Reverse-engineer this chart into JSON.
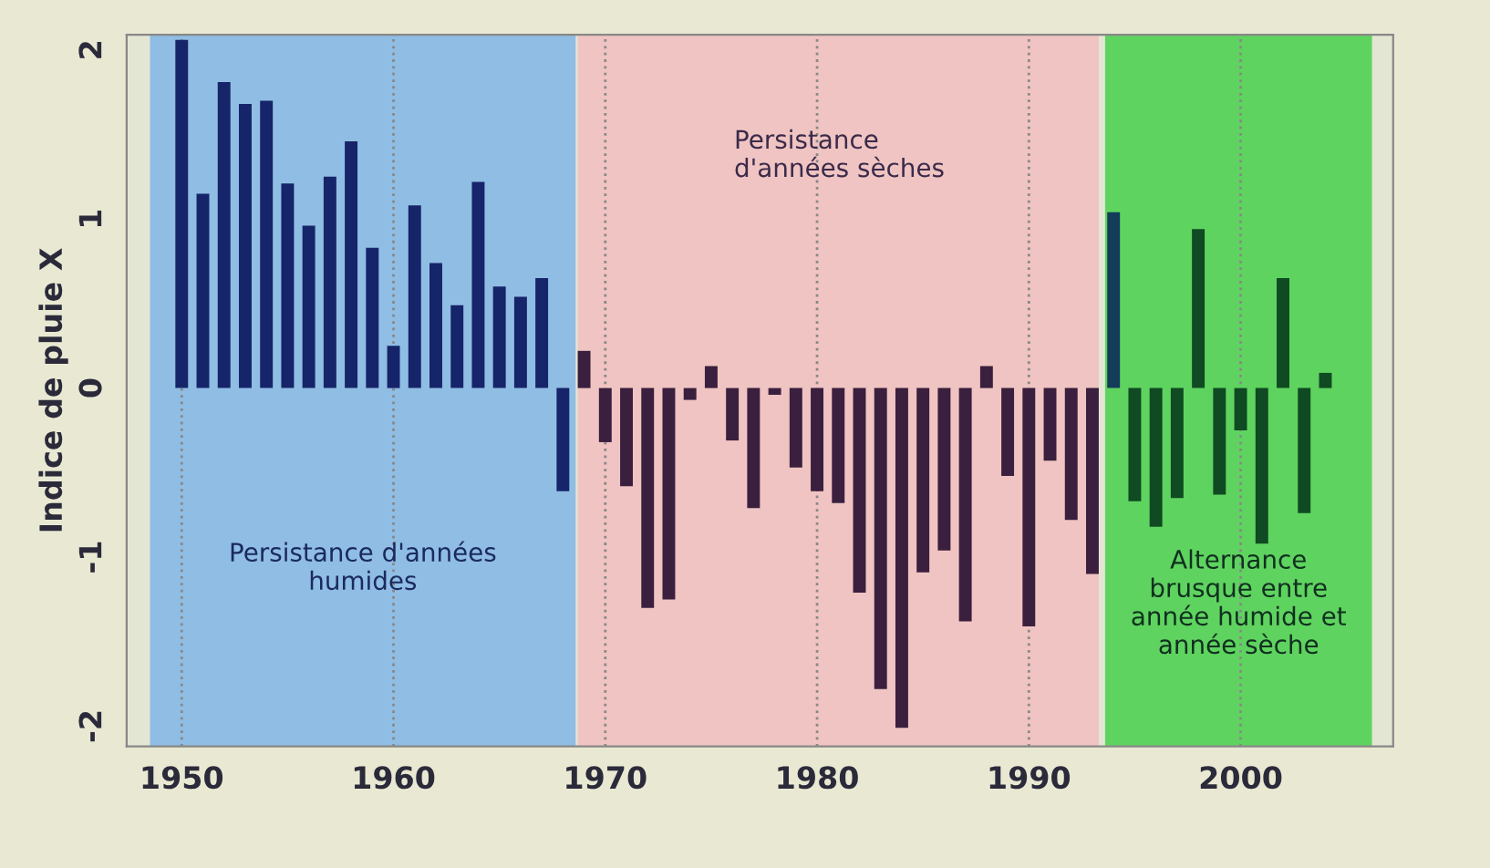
{
  "chart_data": {
    "type": "bar",
    "ylabel": "Indice de pluie X",
    "x": [
      1950,
      1951,
      1952,
      1953,
      1954,
      1955,
      1956,
      1957,
      1958,
      1959,
      1960,
      1961,
      1962,
      1963,
      1964,
      1965,
      1966,
      1967,
      1968,
      1969,
      1970,
      1971,
      1972,
      1973,
      1974,
      1975,
      1976,
      1977,
      1978,
      1979,
      1980,
      1981,
      1982,
      1983,
      1984,
      1985,
      1986,
      1987,
      1988,
      1989,
      1990,
      1991,
      1992,
      1993,
      1994,
      1995,
      1996,
      1997,
      1998,
      1999,
      2000,
      2001,
      2002,
      2003,
      2004
    ],
    "values": [
      2.06,
      1.15,
      1.81,
      1.68,
      1.7,
      1.21,
      0.96,
      1.25,
      1.46,
      0.83,
      0.25,
      1.08,
      0.74,
      0.49,
      1.22,
      0.6,
      0.54,
      0.65,
      -0.61,
      0.22,
      -0.32,
      -0.58,
      -1.3,
      -1.25,
      -0.07,
      0.13,
      -0.31,
      -0.71,
      -0.04,
      -0.47,
      -0.61,
      -0.68,
      -1.21,
      -1.78,
      -2.01,
      -1.09,
      -0.96,
      -1.38,
      0.13,
      -0.52,
      -1.41,
      -0.43,
      -0.78,
      -1.1,
      1.04,
      -0.67,
      -0.82,
      -0.65,
      0.94,
      -0.63,
      -0.25,
      -0.92,
      0.65,
      -0.74,
      0.09
    ],
    "colors": [
      "#16246a",
      "#16246a",
      "#16246a",
      "#16246a",
      "#16246a",
      "#16246a",
      "#16246a",
      "#16246a",
      "#16246a",
      "#16246a",
      "#16246a",
      "#16246a",
      "#16246a",
      "#16246a",
      "#16246a",
      "#16246a",
      "#16246a",
      "#16246a",
      "#16246a",
      "#3a1f3e",
      "#3a1f3e",
      "#3a1f3e",
      "#3a1f3e",
      "#3a1f3e",
      "#3a1f3e",
      "#3a1f3e",
      "#3a1f3e",
      "#3a1f3e",
      "#3a1f3e",
      "#3a1f3e",
      "#3a1f3e",
      "#3a1f3e",
      "#3a1f3e",
      "#3a1f3e",
      "#3a1f3e",
      "#3a1f3e",
      "#3a1f3e",
      "#3a1f3e",
      "#3a1f3e",
      "#3a1f3e",
      "#3a1f3e",
      "#3a1f3e",
      "#3a1f3e",
      "#3a1f3e",
      "#123c5a",
      "#0f4a22",
      "#0f4a22",
      "#0f4a22",
      "#0f4a22",
      "#0f4a22",
      "#0f4a22",
      "#0f4a22",
      "#0f4a22",
      "#0f4a22",
      "#0f4a22"
    ],
    "bands": [
      {
        "axis": "x",
        "from": 1948.5,
        "to": 1968.6,
        "label": "Persistance d'années humides",
        "color": "#90bde3"
      },
      {
        "axis": "x",
        "from": 1968.7,
        "to": 1993.3,
        "label": "Persistance d'années sèches",
        "color": "#f0c4c2"
      },
      {
        "axis": "x",
        "from": 1993.6,
        "to": 2006.2,
        "label": "Alternance brusque entre année humide et année sèche",
        "color": "#5fd35f"
      }
    ],
    "xlim": [
      1947.4,
      2007.2
    ],
    "xticks": [
      1950,
      1960,
      1970,
      1980,
      1990,
      2000
    ],
    "ylim": [
      -2.12,
      2.09
    ],
    "yticks": [
      -2,
      -1,
      0,
      1,
      2
    ],
    "grid": "x"
  }
}
